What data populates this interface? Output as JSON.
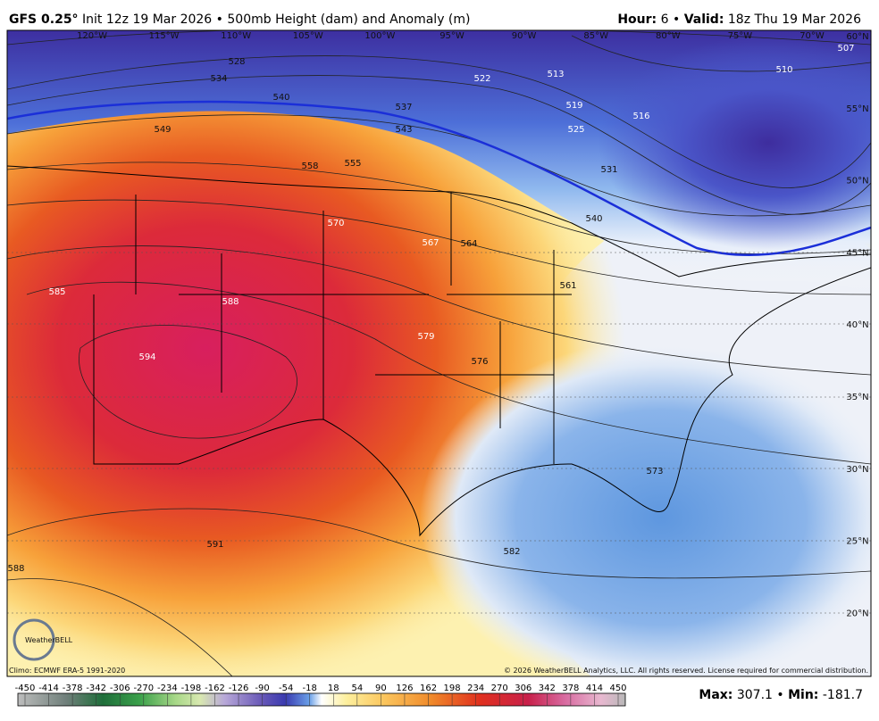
{
  "header": {
    "model": "GFS 0.25°",
    "title": "Init 12z 19 Mar 2026 • 500mb Height (dam) and Anomaly (m)",
    "hour_label": "Hour:",
    "hour": "6 •",
    "valid_label": "Valid:",
    "valid": "18z Thu 19 Mar 2026"
  },
  "map": {
    "longitudes": [
      "120°W",
      "115°W",
      "110°W",
      "105°W",
      "100°W",
      "95°W",
      "90°W",
      "85°W",
      "80°W",
      "75°W",
      "70°W"
    ],
    "latitudes": [
      "60°N",
      "55°N",
      "50°N",
      "45°N",
      "40°N",
      "35°N",
      "30°N",
      "25°N",
      "20°N"
    ],
    "contour_labels": [
      "528",
      "534",
      "540",
      "537",
      "543",
      "549",
      "558",
      "555",
      "522",
      "513",
      "519",
      "516",
      "525",
      "531",
      "510",
      "507",
      "570",
      "567",
      "564",
      "540",
      "561",
      "585",
      "588",
      "594",
      "579",
      "576",
      "573",
      "582",
      "591",
      "588"
    ],
    "logo": "WeatherBELL"
  },
  "footer": {
    "climo": "Climo: ECMWF ERA-5 1991-2020",
    "copyright": "© 2026 WeatherBELL Analytics, LLC. All rights reserved. License required for commercial distribution.",
    "max_label": "Max:",
    "max": "307.1 •",
    "min_label": "Min:",
    "min": "-181.7"
  },
  "colorbar": {
    "ticks": [
      -450,
      -414,
      -378,
      -342,
      -306,
      -270,
      -234,
      -198,
      -162,
      -126,
      -90,
      -54,
      -18,
      18,
      54,
      90,
      126,
      162,
      198,
      234,
      270,
      306,
      342,
      378,
      414,
      450
    ]
  }
}
